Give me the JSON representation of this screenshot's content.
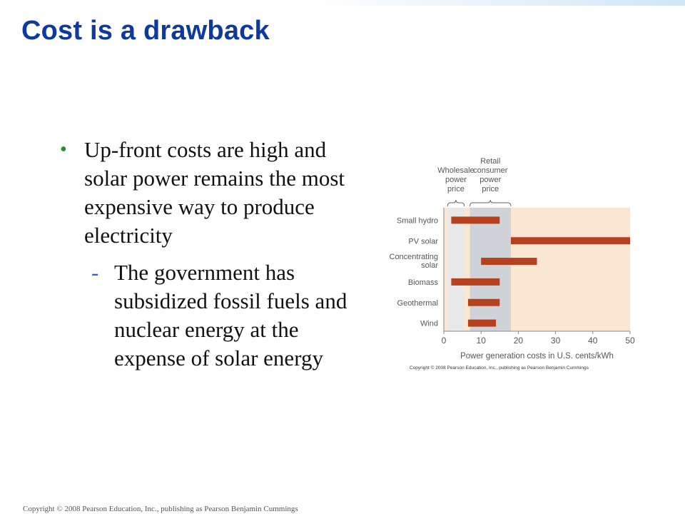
{
  "slide": {
    "title": "Cost is a drawback",
    "bullet_text": "Up-front costs are high and solar power remains the most expensive way to produce electricity",
    "sub_bullet_text": "The government has subsidized fossil fuels and nuclear energy at the expense of solar energy",
    "bullet_marker": "•",
    "sub_bullet_marker": "-",
    "footer": "Copyright © 2008 Pearson Education, Inc., publishing as Pearson Benjamin Cummings"
  },
  "colors": {
    "title": "#0d3a9c",
    "bullet_marker": "#2e8b3a",
    "sub_bullet_marker": "#3a5fcd",
    "bar": "#b5421f",
    "plot_background": "#fbe6d2",
    "wholesale_band": "#e8e8e8",
    "retail_band": "#cfd3d8"
  },
  "chart_data": {
    "type": "bar",
    "orientation": "horizontal",
    "categories": [
      "Small hydro",
      "PV solar",
      "Concentrating solar",
      "Biomass",
      "Geothermal",
      "Wind"
    ],
    "ranges": [
      [
        2,
        15
      ],
      [
        18,
        50
      ],
      [
        10,
        25
      ],
      [
        2,
        15
      ],
      [
        6.5,
        15
      ],
      [
        6.5,
        14
      ]
    ],
    "xlabel": "Power generation costs in U.S. cents/kWh",
    "xlim": [
      0,
      50
    ],
    "xticks": [
      "0",
      "10",
      "20",
      "30",
      "40",
      "50"
    ],
    "bands": [
      {
        "label": "Wholesale power price",
        "range": [
          1,
          5.5
        ]
      },
      {
        "label": "Retail consumer power price",
        "range": [
          7,
          18
        ]
      }
    ],
    "credit": "Copyright © 2008 Pearson Education, Inc., publishing as Pearson Benjamin Cummings"
  }
}
